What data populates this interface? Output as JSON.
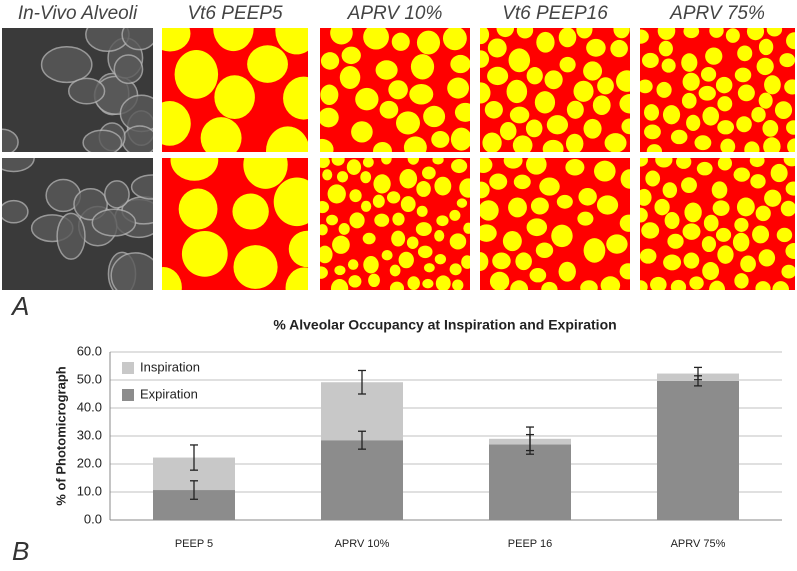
{
  "figure": {
    "image_headers": [
      "In-Vivo Alveoli",
      "Vt6 PEEP5",
      "APRV 10%",
      "Vt6 PEEP16",
      "APRV 75%"
    ],
    "panel_a": "A",
    "panel_b": "B"
  },
  "chart_data": {
    "type": "stacked_bar",
    "title": "% Alveolar Occupancy at Inspiration and Expiration",
    "y_label": "% of Photomicrograph",
    "categories": [
      "PEEP 5",
      "APRV 10%",
      "PEEP 16",
      "APRV 75%"
    ],
    "series": [
      {
        "name": "Expiration",
        "color": "#8c8c8c",
        "values": [
          10.7,
          28.5,
          27.0,
          49.7
        ],
        "errors": [
          3.3,
          3.2,
          3.5,
          1.8
        ]
      },
      {
        "name": "Inspiration",
        "color": "#c8c8c8",
        "values": [
          11.6,
          20.7,
          2.0,
          2.6
        ],
        "errors": [
          4.5,
          4.2,
          4.2,
          2.2
        ]
      }
    ],
    "ylim": [
      0,
      60
    ],
    "yticks": [
      {
        "value": 0,
        "label": "0.0"
      },
      {
        "value": 10,
        "label": "10.0"
      },
      {
        "value": 20,
        "label": "20.0"
      },
      {
        "value": 30,
        "label": "30.0"
      },
      {
        "value": 40,
        "label": "40.0"
      },
      {
        "value": 50,
        "label": "50.0"
      },
      {
        "value": 60,
        "label": "60.0"
      }
    ],
    "grid": true,
    "legend": "upper left"
  }
}
